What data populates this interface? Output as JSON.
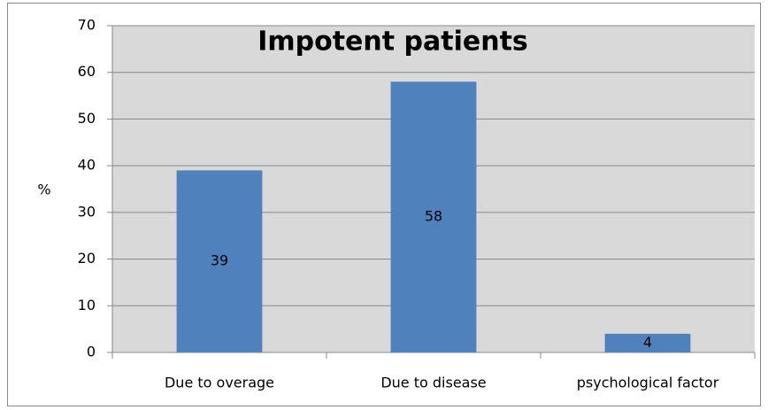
{
  "chart_data": {
    "type": "bar",
    "title": "Impotent patients",
    "y_label": "%",
    "categories": [
      "Due to overage",
      "Due to disease",
      "psychological factor"
    ],
    "values": [
      39,
      58,
      4
    ],
    "color": "#4f81bd",
    "ylim": [
      0,
      70
    ],
    "yticks": [
      0,
      10,
      20,
      30,
      40,
      50,
      60,
      70
    ],
    "grid": true
  }
}
